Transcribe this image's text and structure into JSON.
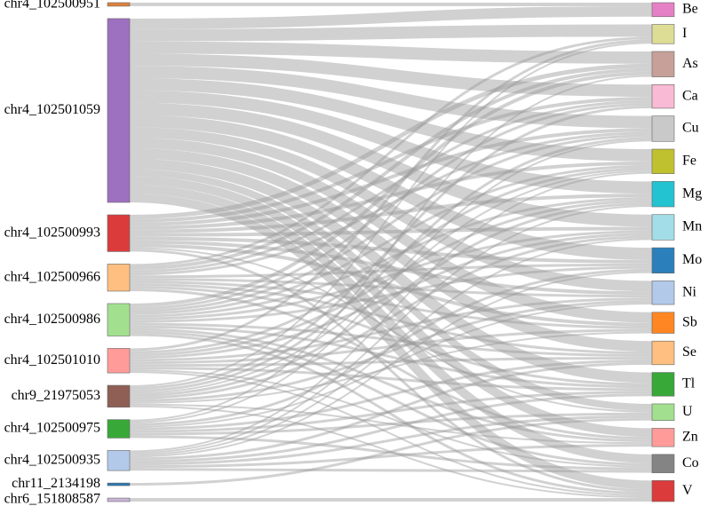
{
  "chart_data": {
    "type": "sankey",
    "sources": [
      {
        "name": "chr4_102500951",
        "color": "#e0823a",
        "targets": [
          "Be"
        ],
        "values": [
          4
        ]
      },
      {
        "name": "chr4_102501059",
        "color": "#9e70c0",
        "targets": [
          "Be",
          "I",
          "As",
          "Ca",
          "Cu",
          "Fe",
          "Mg",
          "Mn",
          "Mo",
          "Ni",
          "Sb",
          "Se",
          "Tl",
          "U",
          "Zn",
          "Co",
          "V"
        ],
        "values": [
          12,
          14,
          14,
          14,
          14,
          14,
          14,
          14,
          14,
          12,
          12,
          12,
          12,
          8,
          10,
          10,
          10
        ]
      },
      {
        "name": "chr4_102500993",
        "color": "#dc3b3b",
        "targets": [
          "As",
          "Ca",
          "Cu",
          "Fe",
          "Mg",
          "Mn",
          "Mo",
          "Ni",
          "Sb",
          "U",
          "V"
        ],
        "values": [
          5,
          4,
          4,
          4,
          4,
          4,
          4,
          4,
          4,
          2,
          3
        ]
      },
      {
        "name": "chr4_102500966",
        "color": "#ffbf80",
        "targets": [
          "I",
          "As",
          "Ca",
          "Cu",
          "Mo",
          "Ni",
          "Sb",
          "Se",
          "Tl",
          "Zn"
        ],
        "values": [
          3,
          4,
          3,
          3,
          3,
          3,
          3,
          3,
          3,
          3
        ]
      },
      {
        "name": "chr4_102500986",
        "color": "#a2e08f",
        "targets": [
          "As",
          "Ca",
          "Cu",
          "Fe",
          "Mg",
          "Mn",
          "Mo",
          "Se",
          "Tl",
          "Zn",
          "Co",
          "V"
        ],
        "values": [
          4,
          3,
          3,
          3,
          3,
          3,
          3,
          3,
          3,
          3,
          3,
          3
        ]
      },
      {
        "name": "chr4_102501010",
        "color": "#ff9c9a",
        "targets": [
          "I",
          "Fe",
          "Mg",
          "Mn",
          "Ni",
          "Sb",
          "Se",
          "Tl",
          "Co",
          "V"
        ],
        "values": [
          3,
          3,
          3,
          3,
          3,
          3,
          3,
          3,
          2,
          2
        ]
      },
      {
        "name": "chr9_21975053",
        "color": "#8f5f56",
        "targets": [
          "I",
          "Ca",
          "Cu",
          "Fe",
          "Mg",
          "Mn",
          "Ni",
          "Sb",
          "Zn",
          "V"
        ],
        "values": [
          2,
          3,
          3,
          2,
          3,
          3,
          3,
          2,
          2,
          2
        ]
      },
      {
        "name": "chr4_102500975",
        "color": "#38a838",
        "targets": [
          "As",
          "Cu",
          "Mo",
          "Ni",
          "Se",
          "Tl",
          "U",
          "Co"
        ],
        "values": [
          2,
          2,
          3,
          2,
          3,
          3,
          3,
          3
        ]
      },
      {
        "name": "chr4_102500935",
        "color": "#b2c9ea",
        "targets": [
          "Fe",
          "Mg",
          "Mn",
          "Mo",
          "Se",
          "Tl",
          "U",
          "Zn",
          "Co"
        ],
        "values": [
          2,
          2,
          2,
          2,
          3,
          3,
          3,
          3,
          3
        ]
      },
      {
        "name": "chr11_2134198",
        "color": "#2878b4",
        "targets": [
          "U"
        ],
        "values": [
          3
        ]
      },
      {
        "name": "chr6_151808587",
        "color": "#c8b4d8",
        "targets": [
          "V"
        ],
        "values": [
          4
        ]
      }
    ],
    "targets": [
      {
        "name": "Be",
        "color": "#e580c6"
      },
      {
        "name": "I",
        "color": "#dedd95"
      },
      {
        "name": "As",
        "color": "#c7a199"
      },
      {
        "name": "Ca",
        "color": "#f8bad4"
      },
      {
        "name": "Cu",
        "color": "#c9c9c9"
      },
      {
        "name": "Fe",
        "color": "#c0c12e"
      },
      {
        "name": "Mg",
        "color": "#24c3d2"
      },
      {
        "name": "Mn",
        "color": "#a3dde7"
      },
      {
        "name": "Mo",
        "color": "#2b80bb"
      },
      {
        "name": "Ni",
        "color": "#b2c9ea"
      },
      {
        "name": "Sb",
        "color": "#ff8622"
      },
      {
        "name": "Se",
        "color": "#ffbf80"
      },
      {
        "name": "Tl",
        "color": "#38a838"
      },
      {
        "name": "U",
        "color": "#a2e08f"
      },
      {
        "name": "Zn",
        "color": "#ff9c9a"
      },
      {
        "name": "Co",
        "color": "#848484"
      },
      {
        "name": "V",
        "color": "#dc3b3b"
      }
    ]
  }
}
